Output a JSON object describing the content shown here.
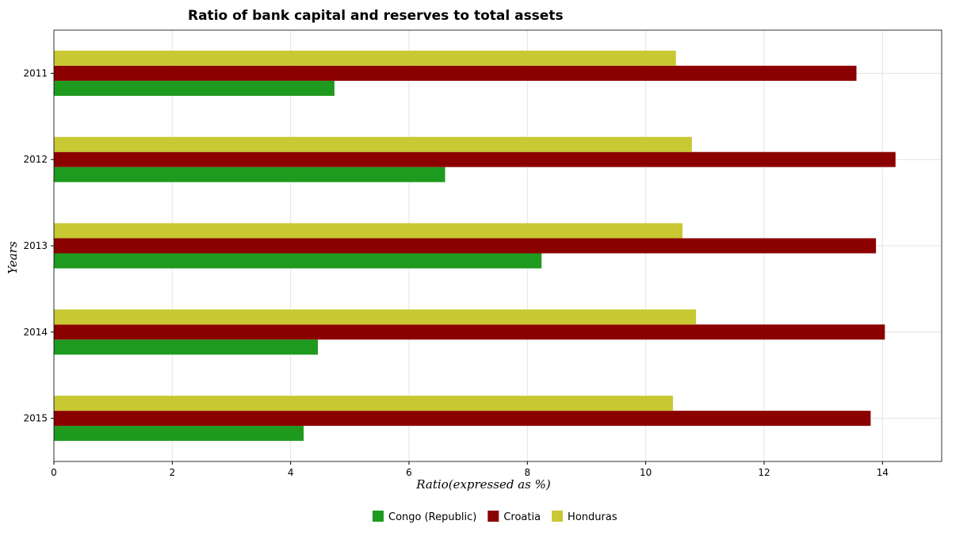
{
  "chart_data": {
    "type": "bar",
    "orientation": "horizontal",
    "title": "Ratio of bank capital and reserves to total assets",
    "xlabel": "Ratio(expressed as %)",
    "ylabel": "Years",
    "categories": [
      "2011",
      "2012",
      "2013",
      "2014",
      "2015"
    ],
    "xlim": [
      0,
      15
    ],
    "xticks": [
      "0",
      "2",
      "4",
      "6",
      "8",
      "10",
      "12",
      "14"
    ],
    "grid": true,
    "legend_position": "bottom-center",
    "series": [
      {
        "name": "Congo (Republic)",
        "color": "#1e9a1e",
        "values": [
          4.74,
          6.61,
          8.24,
          4.46,
          4.22
        ]
      },
      {
        "name": "Croatia",
        "color": "#8b0000",
        "values": [
          13.56,
          14.22,
          13.89,
          14.04,
          13.8
        ]
      },
      {
        "name": "Honduras",
        "color": "#c8c832",
        "values": [
          10.51,
          10.78,
          10.62,
          10.85,
          10.46
        ]
      }
    ]
  }
}
